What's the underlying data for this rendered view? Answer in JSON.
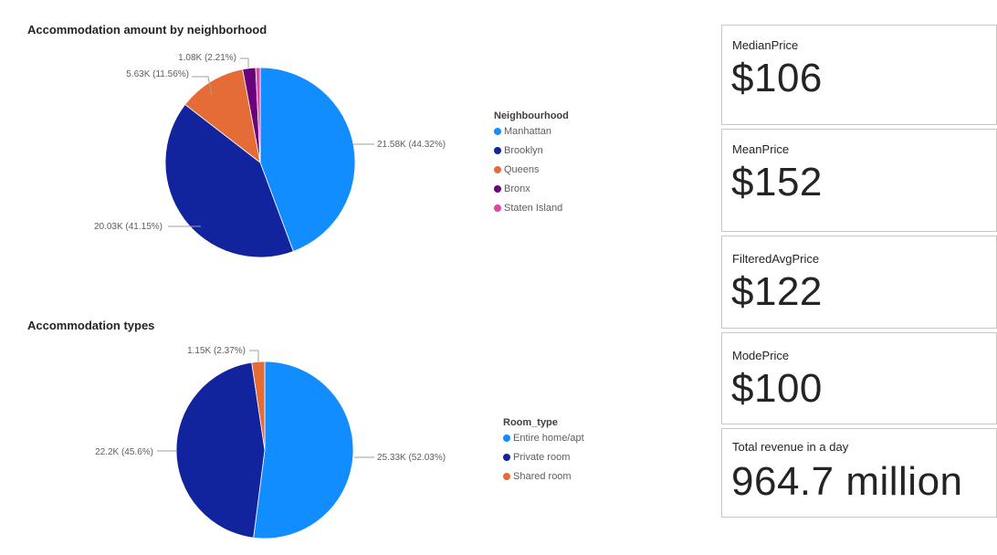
{
  "chart_data": [
    {
      "type": "pie",
      "title": "Accommodation amount by neighborhood",
      "legend_title": "Neighbourhood",
      "legend_position": "right",
      "slices": [
        {
          "name": "Manhattan",
          "value": 21580,
          "percent": 44.32,
          "label": "21.58K (44.32%)",
          "color": "#118dff"
        },
        {
          "name": "Brooklyn",
          "value": 20030,
          "percent": 41.15,
          "label": "20.03K (41.15%)",
          "color": "#12239e"
        },
        {
          "name": "Queens",
          "value": 5630,
          "percent": 11.56,
          "label": "5.63K (11.56%)",
          "color": "#e66c37"
        },
        {
          "name": "Bronx",
          "value": 1080,
          "percent": 2.21,
          "label": "1.08K (2.21%)",
          "color": "#6b007b"
        },
        {
          "name": "Staten Island",
          "value": 370,
          "percent": 0.76,
          "label": "",
          "color": "#e044a7"
        }
      ]
    },
    {
      "type": "pie",
      "title": "Accommodation types",
      "legend_title": "Room_type",
      "legend_position": "right",
      "slices": [
        {
          "name": "Entire home/apt",
          "value": 25330,
          "percent": 52.03,
          "label": "25.33K (52.03%)",
          "color": "#118dff"
        },
        {
          "name": "Private room",
          "value": 22200,
          "percent": 45.6,
          "label": "22.2K (45.6%)",
          "color": "#12239e"
        },
        {
          "name": "Shared room",
          "value": 1150,
          "percent": 2.37,
          "label": "1.15K (2.37%)",
          "color": "#e66c37"
        }
      ]
    }
  ],
  "cards": [
    {
      "label": "MedianPrice",
      "value": "$106"
    },
    {
      "label": "MeanPrice",
      "value": "$152"
    },
    {
      "label": "FilteredAvgPrice",
      "value": "$122"
    },
    {
      "label": "ModePrice",
      "value": "$100"
    },
    {
      "label": "Total revenue in a day",
      "value": "964.7 million"
    }
  ]
}
